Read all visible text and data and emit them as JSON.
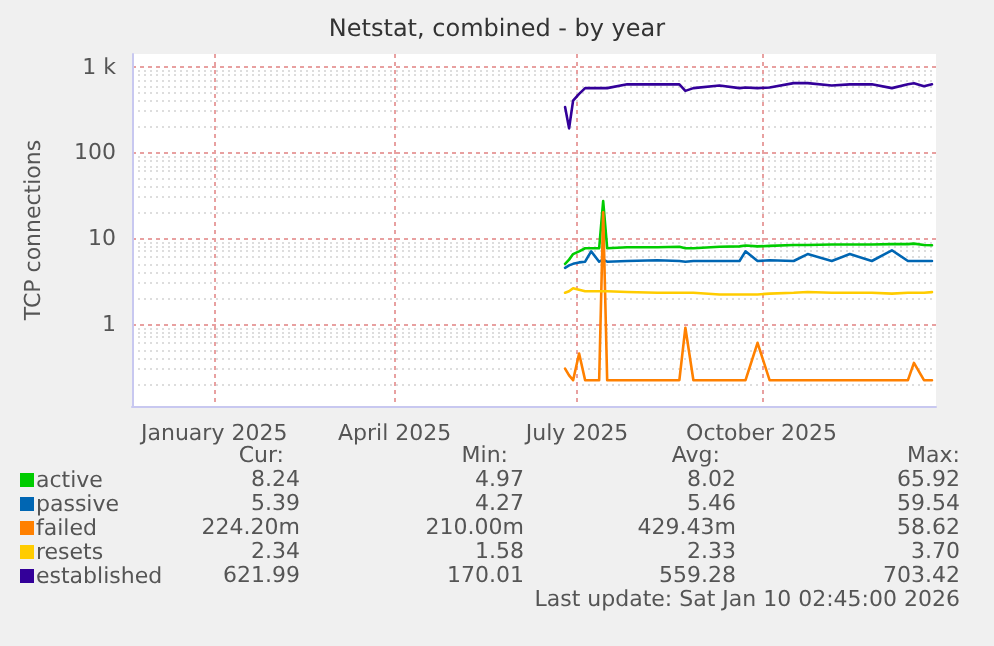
{
  "chart_data": {
    "type": "line",
    "title": "Netstat, combined - by year",
    "ylabel": "TCP connections",
    "x": [
      "2025-07-10",
      "2025-07-12",
      "2025-07-14",
      "2025-07-17",
      "2025-07-20",
      "2025-07-23",
      "2025-07-27",
      "2025-07-29",
      "2025-07-31",
      "2025-08-10",
      "2025-08-25",
      "2025-09-05",
      "2025-09-08",
      "2025-09-12",
      "2025-09-25",
      "2025-10-05",
      "2025-10-08",
      "2025-10-14",
      "2025-10-20",
      "2025-11-01",
      "2025-11-08",
      "2025-11-20",
      "2025-11-29",
      "2025-12-10",
      "2025-12-20",
      "2025-12-28",
      "2025-12-31",
      "2026-01-05",
      "2026-01-09"
    ],
    "series": [
      {
        "name": "active",
        "color": "#00cc00",
        "values": [
          5.0,
          5.6,
          6.5,
          7.0,
          7.6,
          7.6,
          7.6,
          27,
          7.6,
          7.8,
          7.8,
          7.9,
          7.6,
          7.6,
          7.9,
          8.0,
          8.2,
          8.0,
          8.1,
          8.3,
          8.3,
          8.4,
          8.4,
          8.4,
          8.5,
          8.5,
          8.6,
          8.3,
          8.24
        ]
      },
      {
        "name": "passive",
        "color": "#0066b3",
        "values": [
          4.5,
          4.8,
          5.0,
          5.2,
          5.3,
          7.0,
          5.3,
          5.6,
          5.3,
          5.4,
          5.5,
          5.4,
          5.3,
          5.4,
          5.4,
          5.4,
          7.0,
          5.4,
          5.5,
          5.4,
          6.5,
          5.4,
          6.5,
          5.4,
          7.2,
          5.4,
          5.4,
          5.4,
          5.39
        ]
      },
      {
        "name": "failed",
        "color": "#ff8000",
        "values": [
          0.3,
          0.25,
          0.22,
          0.45,
          0.22,
          0.22,
          0.22,
          20,
          0.22,
          0.22,
          0.22,
          0.22,
          0.9,
          0.22,
          0.22,
          0.22,
          0.22,
          0.6,
          0.22,
          0.22,
          0.22,
          0.22,
          0.22,
          0.22,
          0.22,
          0.22,
          0.35,
          0.22,
          0.22
        ]
      },
      {
        "name": "resets",
        "color": "#ffcc00",
        "values": [
          2.3,
          2.4,
          2.6,
          2.5,
          2.4,
          2.4,
          2.4,
          2.4,
          2.4,
          2.35,
          2.3,
          2.3,
          2.3,
          2.3,
          2.2,
          2.2,
          2.2,
          2.2,
          2.25,
          2.3,
          2.35,
          2.3,
          2.3,
          2.3,
          2.25,
          2.3,
          2.3,
          2.3,
          2.34
        ]
      },
      {
        "name": "established",
        "color": "#330099",
        "values": [
          337,
          190,
          400,
          480,
          560,
          560,
          560,
          560,
          560,
          620,
          620,
          620,
          520,
          560,
          600,
          560,
          570,
          560,
          570,
          640,
          640,
          600,
          620,
          620,
          560,
          620,
          640,
          590,
          622
        ]
      }
    ],
    "xlim": [
      "2024-12-06",
      "2026-01-11"
    ],
    "xticks": [
      {
        "value": "2025-01-16",
        "label": "January 2025"
      },
      {
        "value": "2025-04-16",
        "label": "April 2025"
      },
      {
        "value": "2025-07-16",
        "label": "July 2025"
      },
      {
        "value": "2025-10-16",
        "label": "October 2025"
      }
    ],
    "ylim": [
      0.11,
      1400
    ],
    "yticks": [
      1,
      10,
      100,
      {
        "value": 1000,
        "label": "1 k"
      }
    ],
    "log": "y",
    "grid": true,
    "legend": "bottom left",
    "marker": "none",
    "line_style": "solid",
    "annotations": [
      "Cur:",
      "Min:",
      "Avg:",
      "Max:",
      "8.24",
      "4.97",
      "8.02",
      "65.92",
      "5.39",
      "4.27",
      "5.46",
      "59.54",
      "224.20m",
      "210.00m",
      "429.43m",
      "58.62",
      "2.34",
      "1.58",
      "2.33",
      "3.70",
      "621.99",
      "170.01",
      "559.28",
      "703.42",
      "Last update: Sat Jan 10 02:45:00 2026"
    ]
  }
}
